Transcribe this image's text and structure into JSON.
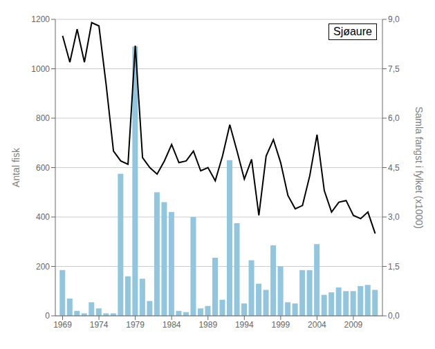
{
  "chart_data": {
    "type": "bar",
    "x": [
      1969,
      1970,
      1971,
      1972,
      1973,
      1974,
      1975,
      1976,
      1977,
      1978,
      1979,
      1980,
      1981,
      1982,
      1983,
      1984,
      1985,
      1986,
      1987,
      1988,
      1989,
      1990,
      1991,
      1992,
      1993,
      1994,
      1995,
      1996,
      1997,
      1998,
      1999,
      2000,
      2001,
      2002,
      2003,
      2004,
      2005,
      2006,
      2007,
      2008,
      2009,
      2010,
      2011,
      2012
    ],
    "series": [
      {
        "type": "bar",
        "color": "#92C5DE",
        "values": [
          185,
          70,
          20,
          10,
          55,
          30,
          10,
          10,
          575,
          160,
          1090,
          150,
          60,
          500,
          460,
          420,
          20,
          15,
          400,
          30,
          40,
          235,
          65,
          630,
          375,
          50,
          225,
          130,
          105,
          285,
          200,
          55,
          50,
          185,
          185,
          290,
          85,
          95,
          115,
          100,
          100,
          120,
          125,
          105
        ]
      },
      {
        "type": "line",
        "color": "#000000",
        "axis": "y2",
        "values": [
          8.5,
          7.7,
          8.7,
          7.7,
          8.9,
          8.8,
          7.0,
          5.0,
          4.7,
          4.6,
          8.2,
          4.8,
          4.5,
          4.3,
          4.7,
          5.2,
          4.65,
          4.7,
          5.0,
          4.4,
          4.5,
          4.1,
          4.85,
          5.8,
          5.0,
          4.15,
          4.75,
          3.05,
          4.85,
          5.35,
          4.65,
          3.65,
          3.25,
          3.35,
          4.25,
          5.5,
          3.8,
          3.15,
          3.45,
          3.5,
          3.05,
          2.95,
          3.15,
          2.5
        ]
      }
    ],
    "xlim": [
      1968,
      2013
    ],
    "xticks": [
      1969,
      1974,
      1979,
      1984,
      1989,
      1994,
      1999,
      2004,
      2009
    ],
    "ylim": [
      0,
      1200
    ],
    "yticks": [
      0,
      200,
      400,
      600,
      800,
      1000,
      1200
    ],
    "y2lim": [
      0,
      9
    ],
    "y2ticks": [
      {
        "value": 0,
        "label": "0,0"
      },
      {
        "value": 1.5,
        "label": "1,5"
      },
      {
        "value": 3,
        "label": "3,0"
      },
      {
        "value": 4.5,
        "label": "4,5"
      },
      {
        "value": 6,
        "label": "6,0"
      },
      {
        "value": 7.5,
        "label": "7,5"
      },
      {
        "value": 9,
        "label": "9,0"
      }
    ],
    "ylabel": "Antal fisk",
    "y2label": "Samla fangst i fylket (x1000)",
    "annotations": [
      "Sjøaure"
    ],
    "grid": true
  }
}
